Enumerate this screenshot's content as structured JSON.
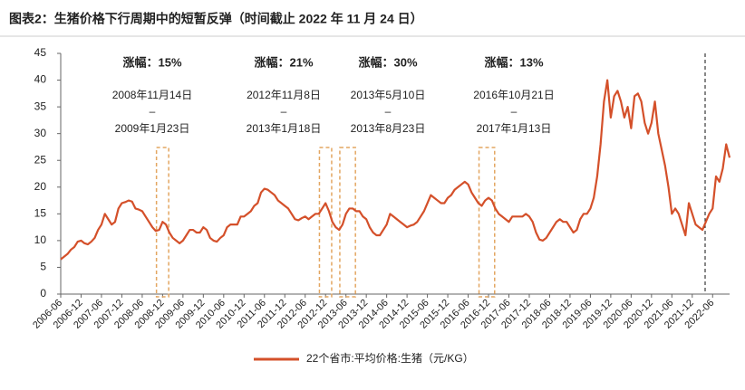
{
  "chart_data": {
    "type": "line",
    "title": "图表2：生猪价格下行周期中的短暂反弹（时间截止 2022 年 11 月 24 日）",
    "categories": [
      "2006-06",
      null,
      null,
      null,
      null,
      null,
      "2006-12",
      null,
      null,
      null,
      null,
      null,
      "2007-06",
      null,
      null,
      null,
      null,
      null,
      "2007-12",
      null,
      null,
      null,
      null,
      null,
      "2008-06",
      null,
      null,
      null,
      null,
      null,
      "2008-12",
      null,
      null,
      null,
      null,
      null,
      "2009-06",
      null,
      null,
      null,
      null,
      null,
      "2009-12",
      null,
      null,
      null,
      null,
      null,
      "2010-06",
      null,
      null,
      null,
      null,
      null,
      "2010-12",
      null,
      null,
      null,
      null,
      null,
      "2011-06",
      null,
      null,
      null,
      null,
      null,
      "2011-12",
      null,
      null,
      null,
      null,
      null,
      "2012-06",
      null,
      null,
      null,
      null,
      null,
      "2012-12",
      null,
      null,
      null,
      null,
      null,
      "2013-06",
      null,
      null,
      null,
      null,
      null,
      "2013-12",
      null,
      null,
      null,
      null,
      null,
      "2014-06",
      null,
      null,
      null,
      null,
      null,
      "2014-12",
      null,
      null,
      null,
      null,
      null,
      "2015-06",
      null,
      null,
      null,
      null,
      null,
      "2015-12",
      null,
      null,
      null,
      null,
      null,
      "2016-06",
      null,
      null,
      null,
      null,
      null,
      "2016-12",
      null,
      null,
      null,
      null,
      null,
      "2017-06",
      null,
      null,
      null,
      null,
      null,
      "2017-12",
      null,
      null,
      null,
      null,
      null,
      "2018-06",
      null,
      null,
      null,
      null,
      null,
      "2018-12",
      null,
      null,
      null,
      null,
      null,
      "2019-06",
      null,
      null,
      null,
      null,
      null,
      "2019-12",
      null,
      null,
      null,
      null,
      null,
      "2020-06",
      null,
      null,
      null,
      null,
      null,
      "2020-12",
      null,
      null,
      null,
      null,
      null,
      "2021-06",
      null,
      null,
      null,
      null,
      null,
      "2021-12",
      null,
      null,
      null,
      null,
      null,
      "2022-06",
      null,
      null,
      null,
      null,
      null
    ],
    "series": [
      {
        "name": "22个省市:平均价格:生猪（元/KG）",
        "color": "#d4502a",
        "values": [
          6.5,
          7,
          7.5,
          8.3,
          8.8,
          9.8,
          10,
          9.5,
          9.3,
          9.8,
          10.5,
          12,
          13,
          15,
          14,
          13,
          13.5,
          16,
          17,
          17.2,
          17.5,
          17.3,
          16,
          15.8,
          15.5,
          14.5,
          13.5,
          12.5,
          11.8,
          12,
          13.5,
          13,
          11.5,
          10.5,
          10,
          9.5,
          10,
          11,
          12,
          12,
          11.5,
          11.5,
          12.5,
          12,
          10.5,
          10,
          9.8,
          10.5,
          11,
          12.5,
          13,
          13,
          13,
          14.5,
          14.5,
          15,
          15.5,
          16.5,
          17,
          19,
          19.7,
          19.5,
          19,
          18.5,
          17.5,
          17,
          16.5,
          16,
          15,
          14,
          13.8,
          14.2,
          14.5,
          14,
          14.5,
          15,
          15,
          16,
          17,
          15.5,
          13.5,
          12.5,
          12,
          13,
          15,
          16,
          16,
          15.5,
          15.5,
          14.5,
          14,
          12.5,
          11.5,
          11,
          11,
          12,
          13,
          15,
          14.5,
          14,
          13.5,
          13,
          12.5,
          12.8,
          13,
          13.5,
          14.5,
          15.5,
          17,
          18.5,
          18,
          17.5,
          17,
          17,
          18,
          18.5,
          19.5,
          20,
          20.5,
          21,
          20.5,
          19,
          18,
          17,
          16.5,
          17.5,
          18,
          17.5,
          16,
          15,
          14.5,
          14,
          13.5,
          14.5,
          14.5,
          14.5,
          14.5,
          15,
          14.5,
          13.5,
          11.5,
          10.2,
          10,
          10.5,
          11.5,
          12.5,
          13.5,
          14,
          13.5,
          13.5,
          12.5,
          11.5,
          12,
          14,
          15,
          15,
          16,
          18,
          22,
          28,
          36,
          40,
          33,
          37,
          38,
          36,
          33,
          35,
          31,
          37,
          37.5,
          36,
          32,
          30,
          32,
          36,
          30,
          27,
          24,
          20,
          15,
          16,
          15,
          13,
          11,
          17,
          15,
          13,
          12.5,
          12,
          13.5,
          15,
          16,
          22,
          21,
          23.5,
          28,
          25.5
        ]
      }
    ],
    "ylim": [
      0,
      45
    ],
    "yticks": [
      0,
      5,
      10,
      15,
      20,
      25,
      30,
      35,
      40,
      45
    ],
    "separator": "–",
    "annotations": [
      {
        "gain": "涨幅：15%",
        "start": "2008年11月14日",
        "end": "2009年1月23日"
      },
      {
        "gain": "涨幅：21%",
        "start": "2012年11月8日",
        "end": "2013年1月18日"
      },
      {
        "gain": "涨幅：30%",
        "start": "2013年5月10日",
        "end": "2013年8月23日"
      },
      {
        "gain": "涨幅：13%",
        "start": "2016年10月21日",
        "end": "2017年1月13日"
      }
    ]
  }
}
